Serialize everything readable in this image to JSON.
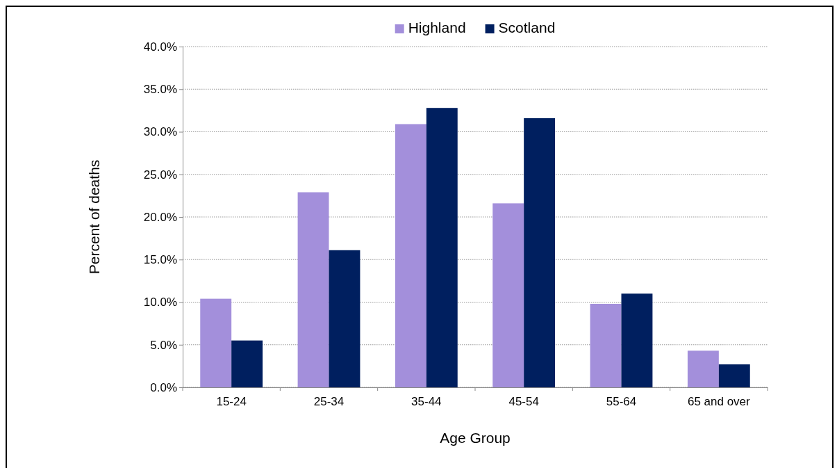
{
  "chart_data": {
    "type": "bar",
    "xlabel": "Age Group",
    "ylabel": "Percent of deaths",
    "categories": [
      "15-24",
      "25-34",
      "35-44",
      "45-54",
      "55-64",
      "65 and over"
    ],
    "series": [
      {
        "name": "Highland",
        "color": "#a38fdb",
        "values": [
          10.4,
          22.9,
          30.9,
          21.6,
          9.8,
          4.3
        ]
      },
      {
        "name": "Scotland",
        "color": "#001f5f",
        "values": [
          5.5,
          16.1,
          32.8,
          31.6,
          11.0,
          2.7
        ]
      }
    ],
    "ylim": [
      0,
      40
    ],
    "yticks": [
      {
        "value": 0,
        "label": "0.0%"
      },
      {
        "value": 5,
        "label": "5.0%"
      },
      {
        "value": 10,
        "label": "10.0%"
      },
      {
        "value": 15,
        "label": "15.0%"
      },
      {
        "value": 20,
        "label": "20.0%"
      },
      {
        "value": 25,
        "label": "25.0%"
      },
      {
        "value": 30,
        "label": "30.0%"
      },
      {
        "value": 35,
        "label": "35.0%"
      },
      {
        "value": 40,
        "label": "40.0%"
      }
    ],
    "grid": "y",
    "legend": "top"
  }
}
